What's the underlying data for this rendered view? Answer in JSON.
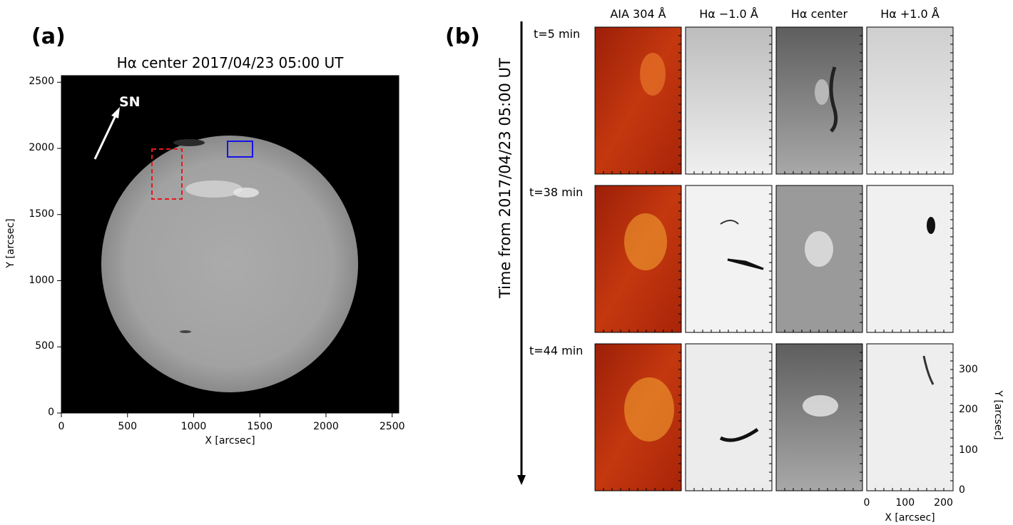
{
  "panel_a": {
    "label": "(a)",
    "title": "Hα center 2017/04/23 05:00 UT",
    "xlabel": "X [arcsec]",
    "ylabel": "Y [arcsec]",
    "xticks": [
      "0",
      "500",
      "1000",
      "1500",
      "2000",
      "2500"
    ],
    "yticks": [
      "0",
      "500",
      "1000",
      "1500",
      "2000",
      "2500"
    ],
    "arrow_label": "SN",
    "colors": {
      "background": "#000000",
      "disk": "#a6a6a6",
      "red_box": "#e8161b",
      "blue_box": "#1414e6"
    }
  },
  "panel_b": {
    "label": "(b)",
    "time_axis_label": "Time from 2017/04/23 05:00 UT",
    "columns": [
      "AIA 304 Å",
      "Hα −1.0 Å",
      "Hα center",
      "Hα +1.0 Å"
    ],
    "rows": [
      "t=5 min",
      "t=38 min",
      "t=44 min"
    ],
    "xlabel": "X [arcsec]",
    "ylabel": "Y [arcsec]",
    "xticks": [
      "0",
      "100",
      "200"
    ],
    "yticks": [
      "0",
      "100",
      "200",
      "300"
    ],
    "colors": {
      "aia": "#b8240a",
      "aia_bright": "#f2a030"
    }
  }
}
